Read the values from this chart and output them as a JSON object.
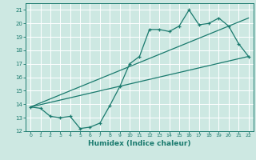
{
  "xlabel": "Humidex (Indice chaleur)",
  "ylabel": "",
  "xlim": [
    -0.5,
    22.5
  ],
  "ylim": [
    12,
    21.5
  ],
  "xticks": [
    0,
    1,
    2,
    3,
    4,
    5,
    6,
    7,
    8,
    9,
    10,
    11,
    12,
    13,
    14,
    15,
    16,
    17,
    18,
    19,
    20,
    21,
    22
  ],
  "yticks": [
    12,
    13,
    14,
    15,
    16,
    17,
    18,
    19,
    20,
    21
  ],
  "bg_color": "#cde8e2",
  "grid_color": "#ffffff",
  "line_color": "#1a7a6e",
  "line1_x": [
    0,
    1,
    2,
    3,
    4,
    5,
    6,
    7,
    8,
    9,
    10,
    11,
    12,
    13,
    14,
    15,
    16,
    17,
    18,
    19,
    20,
    21,
    22
  ],
  "line1_y": [
    13.8,
    13.7,
    13.1,
    13.0,
    13.1,
    12.2,
    12.3,
    12.6,
    13.9,
    15.3,
    17.0,
    17.55,
    19.55,
    19.55,
    19.4,
    19.8,
    21.0,
    19.9,
    20.0,
    20.4,
    19.8,
    18.5,
    17.55
  ],
  "line2_x": [
    0,
    22
  ],
  "line2_y": [
    13.8,
    17.55
  ],
  "line3_x": [
    0,
    22
  ],
  "line3_y": [
    13.8,
    20.4
  ]
}
